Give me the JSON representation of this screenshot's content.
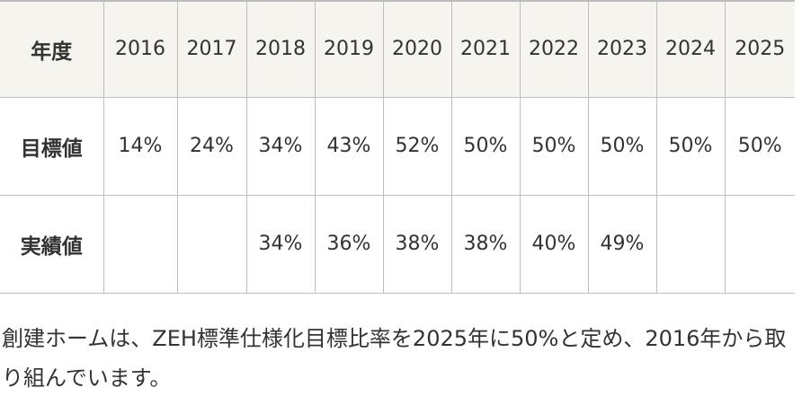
{
  "table": {
    "header": {
      "label": "年度",
      "years": [
        "2016",
        "2017",
        "2018",
        "2019",
        "2020",
        "2021",
        "2022",
        "2023",
        "2024",
        "2025"
      ]
    },
    "rows": [
      {
        "label": "目標値",
        "values": [
          "14%",
          "24%",
          "34%",
          "43%",
          "52%",
          "50%",
          "50%",
          "50%",
          "50%",
          "50%"
        ]
      },
      {
        "label": "実績値",
        "values": [
          null,
          null,
          "34%",
          "36%",
          "38%",
          "38%",
          "40%",
          "49%",
          null,
          null
        ]
      }
    ]
  },
  "note": "創建ホームは、ZEH標準仕様化目標比率を2025年に50%と定め、2016年から取り組んでいます。"
}
